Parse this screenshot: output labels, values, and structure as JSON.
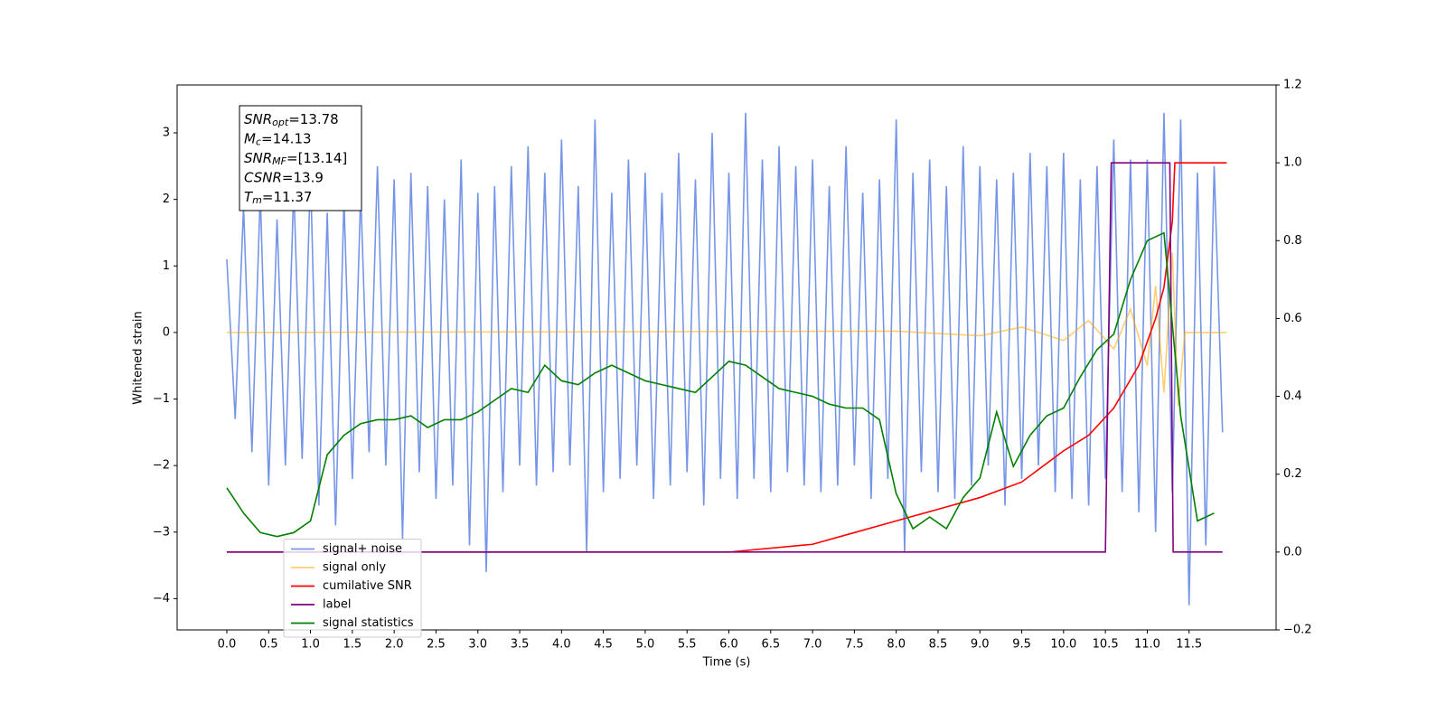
{
  "chart_data": {
    "type": "line",
    "xlabel": "Time (s)",
    "ylabel": "Whitened strain",
    "xlim": [
      -0.594,
      12.54
    ],
    "ylim": [
      -4.47,
      3.72
    ],
    "y2lim": [
      -0.2,
      1.2
    ],
    "xticks": [
      {
        "value": 0,
        "label": "0.0"
      },
      0.5,
      {
        "value": 1,
        "label": "1.0"
      },
      1.5,
      {
        "value": 2,
        "label": "2.0"
      },
      2.5,
      {
        "value": 3,
        "label": "3.0"
      },
      3.5,
      {
        "value": 4,
        "label": "4.0"
      },
      4.5,
      {
        "value": 5,
        "label": "5.0"
      },
      5.5,
      {
        "value": 6,
        "label": "6.0"
      },
      6.5,
      {
        "value": 7,
        "label": "7.0"
      },
      7.5,
      {
        "value": 8,
        "label": "8.0"
      },
      8.5,
      {
        "value": 9,
        "label": "9.0"
      },
      9.5,
      {
        "value": 10,
        "label": "10.0"
      },
      10.5,
      {
        "value": 11,
        "label": "11.0"
      },
      11.5
    ],
    "yticks": [
      {
        "value": -4,
        "label": "−4"
      },
      {
        "value": -3,
        "label": "−3"
      },
      {
        "value": -2,
        "label": "−2"
      },
      {
        "value": -1,
        "label": "−1"
      },
      0,
      1,
      2,
      3
    ],
    "y2ticks": [
      {
        "value": -0.2,
        "label": "−0.2"
      },
      {
        "value": 0,
        "label": "0.0"
      },
      0.2,
      0.4,
      0.6,
      0.8,
      {
        "value": 1,
        "label": "1.0"
      },
      1.2
    ],
    "legend": "lower left",
    "annotation": [
      {
        "base": "SNR",
        "sub": "opt",
        "text": "=13.78"
      },
      {
        "base": "M",
        "sub": "c",
        "text": "=14.13"
      },
      {
        "base": "SNR",
        "sub": "MF",
        "text": "=[13.14]"
      },
      {
        "base": "CSNR",
        "sub": null,
        "text": "=13.9"
      },
      {
        "base": "T",
        "sub": "m",
        "text": "=11.37"
      }
    ],
    "series": [
      {
        "name": "signal+ noise",
        "color": "#6f8fe6",
        "opacity": 0.95,
        "x": [
          0,
          0.1,
          0.2,
          0.3,
          0.4,
          0.5,
          0.6,
          0.7,
          0.8,
          0.9,
          1,
          1.1,
          1.2,
          1.3,
          1.4,
          1.5,
          1.6,
          1.7,
          1.8,
          1.9,
          2,
          2.1,
          2.2,
          2.3,
          2.4,
          2.5,
          2.6,
          2.7,
          2.8,
          2.9,
          3,
          3.1,
          3.2,
          3.3,
          3.4,
          3.5,
          3.6,
          3.7,
          3.8,
          3.9,
          4,
          4.1,
          4.2,
          4.3,
          4.4,
          4.5,
          4.6,
          4.7,
          4.8,
          4.9,
          5,
          5.1,
          5.2,
          5.3,
          5.4,
          5.5,
          5.6,
          5.7,
          5.8,
          5.9,
          6,
          6.1,
          6.2,
          6.3,
          6.4,
          6.5,
          6.6,
          6.7,
          6.8,
          6.9,
          7,
          7.1,
          7.2,
          7.3,
          7.4,
          7.5,
          7.6,
          7.7,
          7.8,
          7.9,
          8,
          8.1,
          8.2,
          8.3,
          8.4,
          8.5,
          8.6,
          8.7,
          8.8,
          8.9,
          9,
          9.1,
          9.2,
          9.3,
          9.4,
          9.5,
          9.6,
          9.7,
          9.8,
          9.9,
          10,
          10.1,
          10.2,
          10.3,
          10.4,
          10.5,
          10.6,
          10.7,
          10.8,
          10.9,
          11,
          11.1,
          11.2,
          11.3,
          11.4,
          11.5,
          11.6,
          11.7,
          11.8,
          11.9
        ],
        "values": [
          1.1,
          -1.3,
          1.9,
          -1.8,
          2.1,
          -2.3,
          1.7,
          -2.0,
          2.2,
          -1.9,
          2.4,
          -2.6,
          1.8,
          -2.9,
          2.0,
          -2.2,
          2.1,
          -1.8,
          2.5,
          -2.0,
          2.3,
          -3.1,
          2.4,
          -2.1,
          2.2,
          -2.5,
          2.0,
          -2.3,
          2.6,
          -3.2,
          2.1,
          -3.6,
          2.2,
          -2.4,
          2.5,
          -2.0,
          2.8,
          -2.3,
          2.4,
          -2.1,
          2.9,
          -2.0,
          2.2,
          -3.3,
          3.2,
          -2.4,
          2.1,
          -2.2,
          2.6,
          -2.0,
          2.4,
          -2.5,
          2.1,
          -2.3,
          2.7,
          -2.1,
          2.3,
          -2.6,
          3.0,
          -2.2,
          2.4,
          -2.5,
          3.3,
          -2.2,
          2.6,
          -2.4,
          2.8,
          -2.1,
          2.5,
          -2.3,
          2.6,
          -2.4,
          2.2,
          -2.3,
          2.8,
          -2.0,
          2.1,
          -2.5,
          2.3,
          -2.2,
          3.2,
          -3.3,
          2.4,
          -2.1,
          2.6,
          -2.4,
          2.2,
          -2.5,
          2.8,
          -2.3,
          2.5,
          -2.0,
          2.3,
          -2.6,
          2.4,
          -2.2,
          2.7,
          -2.0,
          2.5,
          -2.4,
          2.7,
          -2.5,
          2.3,
          -2.6,
          2.5,
          -2.2,
          2.9,
          -2.4,
          2.6,
          -2.7,
          2.6,
          -3.0,
          3.3,
          -2.4,
          3.2,
          -4.1,
          2.4,
          -3.2,
          2.5,
          -1.5
        ]
      },
      {
        "name": "signal only",
        "color": "#ffa500",
        "opacity": 0.55,
        "x": [
          0,
          8,
          9,
          9.5,
          10,
          10.3,
          10.6,
          10.8,
          11,
          11.1,
          11.2,
          11.3,
          11.37,
          11.45,
          11.95
        ],
        "values": [
          0,
          0.02,
          -0.05,
          0.08,
          -0.12,
          0.18,
          -0.25,
          0.35,
          -0.5,
          0.7,
          -0.9,
          1.2,
          -1.1,
          0,
          0
        ]
      },
      {
        "name": "cumilative SNR",
        "color": "#ff0000",
        "axis": "y2",
        "x": [
          0,
          6,
          7,
          7.5,
          8,
          8.5,
          9,
          9.5,
          10,
          10.3,
          10.6,
          10.9,
          11.1,
          11.2,
          11.3,
          11.33,
          11.4,
          11.95
        ],
        "values": [
          0,
          0,
          0.02,
          0.05,
          0.08,
          0.11,
          0.14,
          0.18,
          0.26,
          0.3,
          0.37,
          0.48,
          0.6,
          0.68,
          0.85,
          1,
          1,
          1
        ]
      },
      {
        "name": "label",
        "color": "#800080",
        "axis": "y2",
        "x": [
          0,
          10.5,
          10.57,
          11.27,
          11.31,
          11.9
        ],
        "values": [
          0,
          0,
          1,
          1,
          0,
          0
        ]
      },
      {
        "name": "signal statistics",
        "color": "#008000",
        "axis": "y2",
        "x": [
          0,
          0.2,
          0.4,
          0.6,
          0.8,
          1,
          1.2,
          1.4,
          1.6,
          1.8,
          2,
          2.2,
          2.4,
          2.6,
          2.8,
          3,
          3.2,
          3.4,
          3.6,
          3.8,
          4,
          4.2,
          4.4,
          4.6,
          4.8,
          5,
          5.2,
          5.4,
          5.6,
          5.8,
          6,
          6.2,
          6.4,
          6.6,
          6.8,
          7,
          7.2,
          7.4,
          7.6,
          7.8,
          8,
          8.2,
          8.4,
          8.6,
          8.8,
          9,
          9.2,
          9.4,
          9.6,
          9.8,
          10,
          10.2,
          10.4,
          10.6,
          10.8,
          11,
          11.2,
          11.4,
          11.6,
          11.8
        ],
        "values": [
          0.165,
          0.1,
          0.05,
          0.04,
          0.05,
          0.08,
          0.25,
          0.3,
          0.33,
          0.34,
          0.34,
          0.35,
          0.32,
          0.34,
          0.34,
          0.36,
          0.39,
          0.42,
          0.41,
          0.48,
          0.44,
          0.43,
          0.46,
          0.48,
          0.46,
          0.44,
          0.43,
          0.42,
          0.41,
          0.45,
          0.49,
          0.48,
          0.45,
          0.42,
          0.41,
          0.4,
          0.38,
          0.37,
          0.37,
          0.34,
          0.15,
          0.06,
          0.09,
          0.06,
          0.14,
          0.19,
          0.36,
          0.22,
          0.3,
          0.35,
          0.37,
          0.45,
          0.52,
          0.56,
          0.7,
          0.8,
          0.82,
          0.35,
          0.08,
          0.1
        ]
      }
    ]
  }
}
